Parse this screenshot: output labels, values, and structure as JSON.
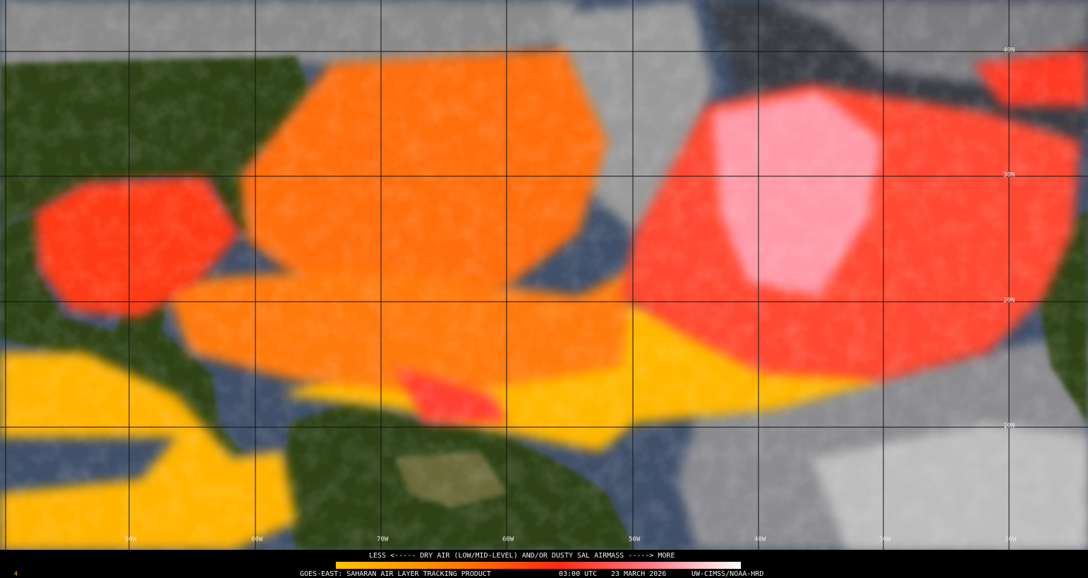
{
  "map": {
    "lon_labels": [
      "90W",
      "80W",
      "70W",
      "60W",
      "50W",
      "40W",
      "30W",
      "20W"
    ],
    "lat_labels": [
      "40N",
      "30N",
      "20N",
      "10N"
    ]
  },
  "legend": {
    "caption": "LESS <----- DRY AIR (LOW/MID-LEVEL) AND/OR DUSTY SAL AIRMASS -----> MORE"
  },
  "footer": {
    "frame": "4",
    "product": "GOES-EAST: SAHARAN AIR LAYER TRACKING PRODUCT",
    "time": "03:00 UTC",
    "date": "23 MARCH 2026",
    "credit": "UW-CIMSS/NOAA-HRD"
  }
}
